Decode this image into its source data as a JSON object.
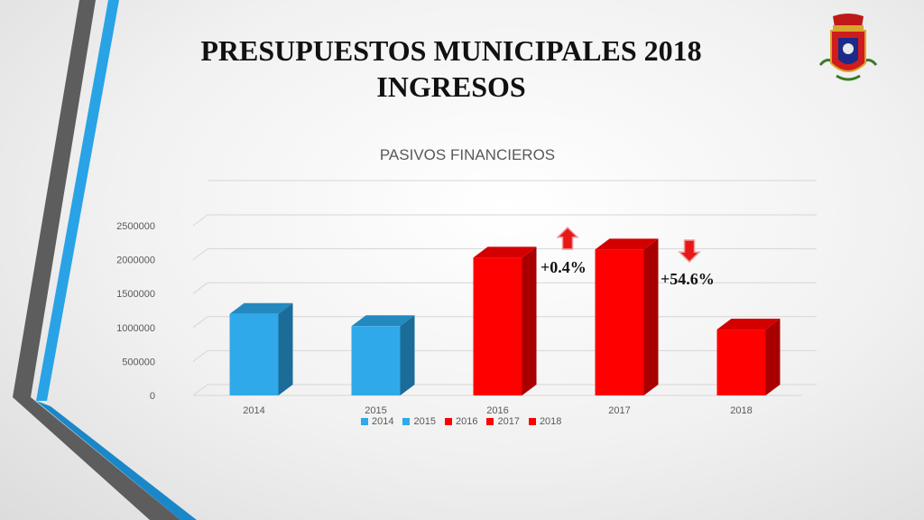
{
  "slide": {
    "title_line1": "PRESUPUESTOS MUNICIPALES 2018",
    "title_line2": "INGRESOS"
  },
  "colors": {
    "blue_front": "#2fa9ea",
    "blue_side": "#1b6c98",
    "blue_top": "#2489bf",
    "red_front": "#ff0000",
    "red_side": "#a80000",
    "red_top": "#d40000",
    "deco_gray": "#5d5d5d",
    "deco_blue": "#29a3e6"
  },
  "chart_data": {
    "type": "bar",
    "title": "PASIVOS FINANCIEROS",
    "categories": [
      "2014",
      "2015",
      "2016",
      "2017",
      "2018"
    ],
    "values": [
      1200000,
      1020000,
      2030000,
      2150000,
      970000
    ],
    "bar_colors": [
      "blue",
      "blue",
      "red",
      "red",
      "red"
    ],
    "yticks": [
      "0",
      "500000",
      "1000000",
      "1500000",
      "2000000",
      "2500000"
    ],
    "ylim": [
      0,
      2500000
    ],
    "grid": true,
    "legend": {
      "position": "bottom",
      "entries": [
        {
          "label": "2014",
          "color": "blue"
        },
        {
          "label": "2015",
          "color": "blue"
        },
        {
          "label": "2016",
          "color": "red"
        },
        {
          "label": "2017",
          "color": "red"
        },
        {
          "label": "2018",
          "color": "red"
        }
      ]
    },
    "annotations": [
      {
        "text": "+0.4%",
        "arrow": "up"
      },
      {
        "text": "+54.6%",
        "arrow": "down"
      }
    ]
  }
}
